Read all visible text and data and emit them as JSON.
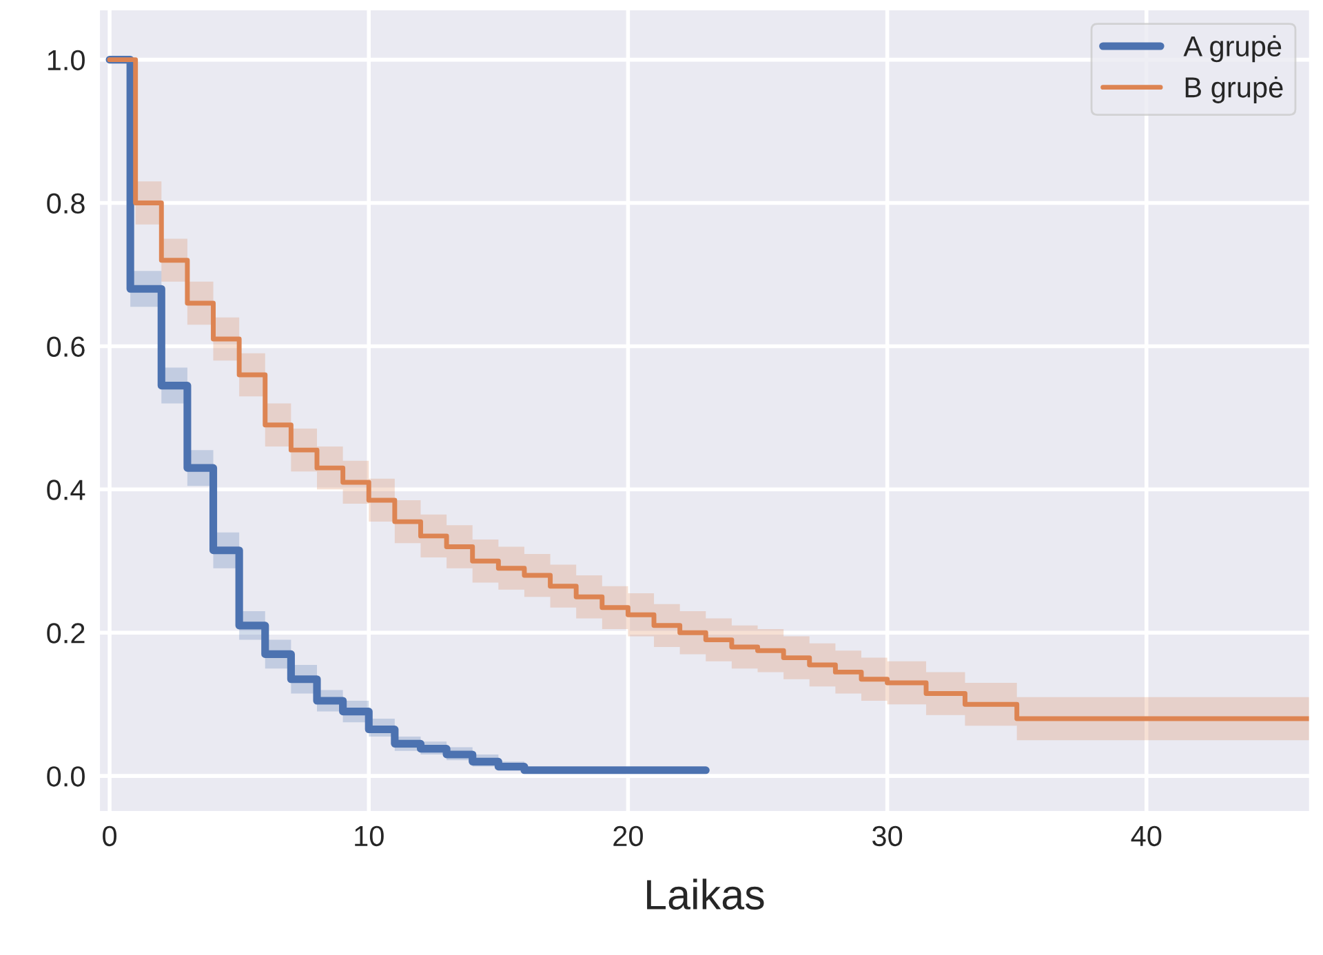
{
  "chart_data": {
    "type": "step",
    "xlabel": "Laikas",
    "xlim": [
      -0.4,
      46.3
    ],
    "ylim": [
      -0.05,
      1.07
    ],
    "xticks": [
      0,
      10,
      20,
      30,
      40
    ],
    "yticks": [
      {
        "value": 0,
        "label": "0.0"
      },
      {
        "value": 0.2,
        "label": "0.2"
      },
      {
        "value": 0.4,
        "label": "0.4"
      },
      {
        "value": 0.6,
        "label": "0.6"
      },
      {
        "value": 0.8,
        "label": "0.8"
      },
      {
        "value": 1,
        "label": "1.0"
      }
    ],
    "grid": true,
    "legend": "top right",
    "series": [
      {
        "name": "A grupė",
        "color": "#4c72b0",
        "x": [
          0,
          0.8,
          2,
          3,
          4,
          5,
          6,
          7,
          8,
          9,
          10,
          11,
          12,
          13,
          14,
          15,
          16,
          23
        ],
        "values": [
          1.0,
          0.68,
          0.545,
          0.43,
          0.315,
          0.21,
          0.17,
          0.135,
          0.105,
          0.09,
          0.065,
          0.045,
          0.038,
          0.03,
          0.02,
          0.013,
          0.008,
          0.008
        ],
        "lower": [
          1.0,
          0.655,
          0.52,
          0.405,
          0.29,
          0.19,
          0.15,
          0.115,
          0.09,
          0.075,
          0.055,
          0.035,
          0.03,
          0.022,
          0.013,
          0.008,
          0.005,
          0.005
        ],
        "upper": [
          1.0,
          0.705,
          0.57,
          0.455,
          0.34,
          0.23,
          0.19,
          0.155,
          0.12,
          0.105,
          0.08,
          0.055,
          0.048,
          0.04,
          0.03,
          0.02,
          0.012,
          0.012
        ]
      },
      {
        "name": "B grupė",
        "color": "#dd8452",
        "x": [
          0,
          1,
          2,
          3,
          4,
          5,
          6,
          7,
          8,
          9,
          10,
          11,
          12,
          13,
          14,
          15,
          16,
          17,
          18,
          19,
          20,
          21,
          22,
          23,
          24,
          25,
          26,
          27,
          28,
          29,
          30,
          31.5,
          33,
          35,
          46.3
        ],
        "values": [
          1.0,
          0.8,
          0.72,
          0.66,
          0.61,
          0.56,
          0.49,
          0.455,
          0.43,
          0.41,
          0.385,
          0.355,
          0.335,
          0.32,
          0.3,
          0.29,
          0.28,
          0.265,
          0.25,
          0.235,
          0.225,
          0.21,
          0.2,
          0.19,
          0.18,
          0.175,
          0.165,
          0.155,
          0.145,
          0.135,
          0.13,
          0.115,
          0.1,
          0.08,
          0.08
        ],
        "lower": [
          1.0,
          0.77,
          0.69,
          0.63,
          0.58,
          0.53,
          0.46,
          0.425,
          0.4,
          0.38,
          0.355,
          0.325,
          0.305,
          0.29,
          0.27,
          0.26,
          0.25,
          0.235,
          0.22,
          0.205,
          0.195,
          0.18,
          0.17,
          0.16,
          0.15,
          0.145,
          0.135,
          0.125,
          0.115,
          0.105,
          0.1,
          0.085,
          0.07,
          0.05,
          0.05
        ],
        "upper": [
          1.0,
          0.83,
          0.75,
          0.69,
          0.64,
          0.59,
          0.52,
          0.485,
          0.46,
          0.44,
          0.415,
          0.385,
          0.365,
          0.35,
          0.33,
          0.32,
          0.31,
          0.295,
          0.28,
          0.265,
          0.255,
          0.24,
          0.23,
          0.22,
          0.21,
          0.205,
          0.195,
          0.185,
          0.175,
          0.165,
          0.16,
          0.145,
          0.13,
          0.11,
          0.11
        ]
      }
    ]
  }
}
